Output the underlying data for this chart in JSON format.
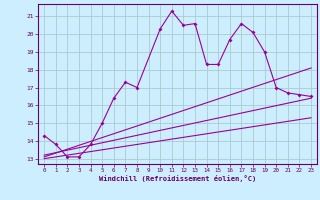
{
  "title": "",
  "xlabel": "Windchill (Refroidissement éolien,°C)",
  "bg_color": "#cceeff",
  "grid_color": "#aacccc",
  "line_color": "#990099",
  "spine_color": "#660066",
  "tick_color": "#660066",
  "xlim": [
    -0.5,
    23.5
  ],
  "ylim": [
    12.7,
    21.7
  ],
  "yticks": [
    13,
    14,
    15,
    16,
    17,
    18,
    19,
    20,
    21
  ],
  "xticks": [
    0,
    1,
    2,
    3,
    4,
    5,
    6,
    7,
    8,
    9,
    10,
    11,
    12,
    13,
    14,
    15,
    16,
    17,
    18,
    19,
    20,
    21,
    22,
    23
  ],
  "line1_x": [
    0,
    1,
    2,
    3,
    4,
    5,
    6,
    7,
    8,
    10,
    11,
    12,
    13,
    14,
    15,
    16,
    17,
    18,
    19,
    20,
    21,
    22,
    23
  ],
  "line1_y": [
    14.3,
    13.8,
    13.1,
    13.1,
    13.8,
    15.0,
    16.4,
    17.3,
    17.0,
    20.3,
    21.3,
    20.5,
    20.6,
    18.3,
    18.3,
    19.7,
    20.6,
    20.1,
    19.0,
    17.0,
    16.7,
    16.6,
    16.5
  ],
  "line2_x": [
    0,
    23
  ],
  "line2_y": [
    13.2,
    16.4
  ],
  "line3_x": [
    0,
    23
  ],
  "line3_y": [
    13.1,
    18.1
  ],
  "line4_x": [
    0,
    23
  ],
  "line4_y": [
    13.0,
    15.3
  ]
}
